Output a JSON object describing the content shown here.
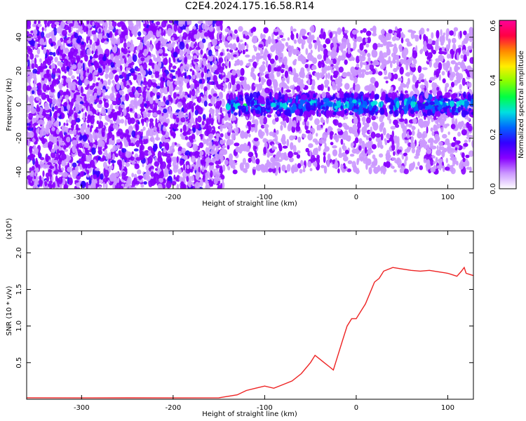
{
  "title": "C2E4.2024.175.16.58.R14",
  "chart_data": [
    {
      "type": "heatmap",
      "title": "C2E4.2024.175.16.58.R14",
      "xlabel": "Height of straight line (km)",
      "ylabel": "Frequency (Hz)",
      "xlim": [
        -360,
        128
      ],
      "ylim": [
        -50,
        50
      ],
      "x_ticks": [
        -300,
        -200,
        -100,
        0,
        100
      ],
      "x_tick_labels": [
        "-300",
        "-200",
        "-100",
        "0",
        "100"
      ],
      "y_ticks": [
        -40,
        -20,
        0,
        20,
        40
      ],
      "y_tick_labels": [
        "-40",
        "-20",
        "0",
        "20",
        "40"
      ],
      "colorbar": {
        "label": "Normalized spectral amplitude",
        "range": [
          0.0,
          0.62
        ],
        "ticks": [
          0.0,
          0.2,
          0.4,
          0.6
        ],
        "tick_labels": [
          "0.0",
          "0.2",
          "0.4",
          "0.6"
        ],
        "colors": [
          "#ffffff",
          "#cc99ff",
          "#8800ff",
          "#3300ff",
          "#0066ff",
          "#00e0e0",
          "#00ff44",
          "#88ff00",
          "#ffee00",
          "#ff8800",
          "#ff0044",
          "#ff0099"
        ]
      },
      "regions": [
        {
          "x_range": [
            -360,
            -145
          ],
          "freq_range": [
            -50,
            50
          ],
          "amplitude": 0.1
        },
        {
          "x_range": [
            -145,
            128
          ],
          "freq_range": [
            -40,
            45
          ],
          "amplitude": 0.07
        },
        {
          "x_range": [
            -140,
            128
          ],
          "freq_range": [
            -6,
            6
          ],
          "amplitude": 0.25
        }
      ],
      "grid": false
    },
    {
      "type": "line",
      "xlabel": "Height of straight line (km)",
      "ylabel": "SNR (10 * v/v)",
      "y_multiplier_label": "(x10⁴)",
      "xlim": [
        -360,
        128
      ],
      "ylim": [
        0,
        23000
      ],
      "x_ticks": [
        -300,
        -200,
        -100,
        0,
        100
      ],
      "x_tick_labels": [
        "-300",
        "-200",
        "-100",
        "0",
        "100"
      ],
      "y_ticks": [
        5000,
        10000,
        15000,
        20000
      ],
      "y_tick_labels": [
        "0.5",
        "1.0",
        "1.5",
        "2.0"
      ],
      "color": "#ee2222",
      "grid": false,
      "series": [
        {
          "x": [
            -360,
            -300,
            -250,
            -200,
            -150,
            -130,
            -120,
            -110,
            -100,
            -90,
            -80,
            -70,
            -60,
            -50,
            -45,
            -40,
            -35,
            -30,
            -25,
            -20,
            -15,
            -10,
            -5,
            0,
            5,
            10,
            15,
            20,
            25,
            30,
            40,
            50,
            60,
            70,
            80,
            90,
            100,
            105,
            110,
            115,
            118,
            120,
            125,
            128
          ],
          "y": [
            200,
            180,
            190,
            180,
            200,
            600,
            1200,
            1500,
            1800,
            1500,
            2000,
            2500,
            3500,
            5000,
            6000,
            5500,
            5000,
            4500,
            4000,
            6000,
            8000,
            10000,
            11000,
            11000,
            12000,
            13000,
            14500,
            16000,
            16500,
            17500,
            18000,
            17800,
            17600,
            17500,
            17600,
            17400,
            17200,
            17000,
            16800,
            17500,
            18000,
            17200,
            17000,
            16900
          ]
        }
      ]
    }
  ]
}
